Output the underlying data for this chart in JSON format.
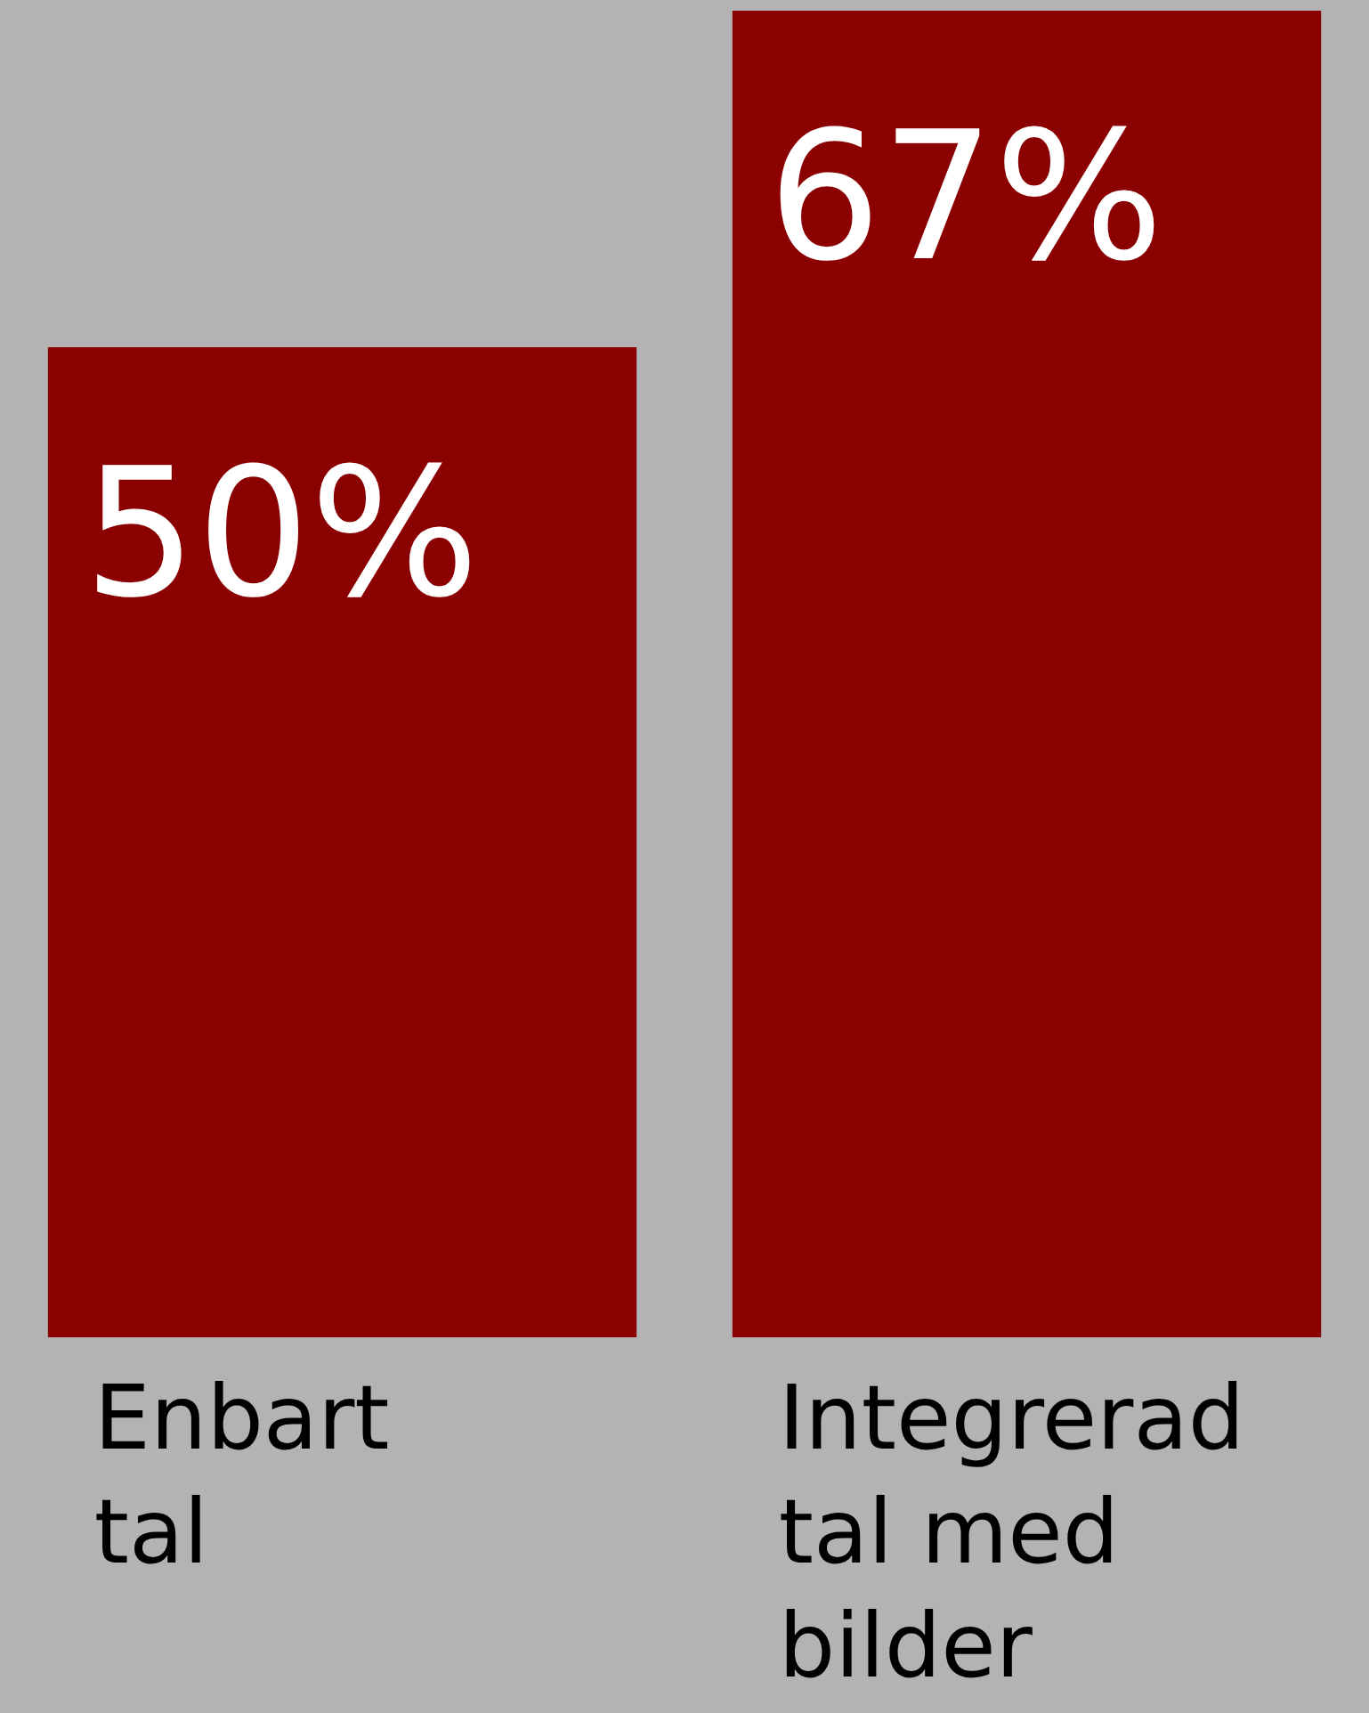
{
  "chart_data": {
    "type": "bar",
    "categories": [
      "Enbart tal",
      "Integrerad tal med bilder"
    ],
    "series": [
      {
        "color": "#8b0000",
        "values": [
          50,
          67
        ],
        "value_labels": [
          "50%",
          "67%"
        ]
      }
    ]
  }
}
